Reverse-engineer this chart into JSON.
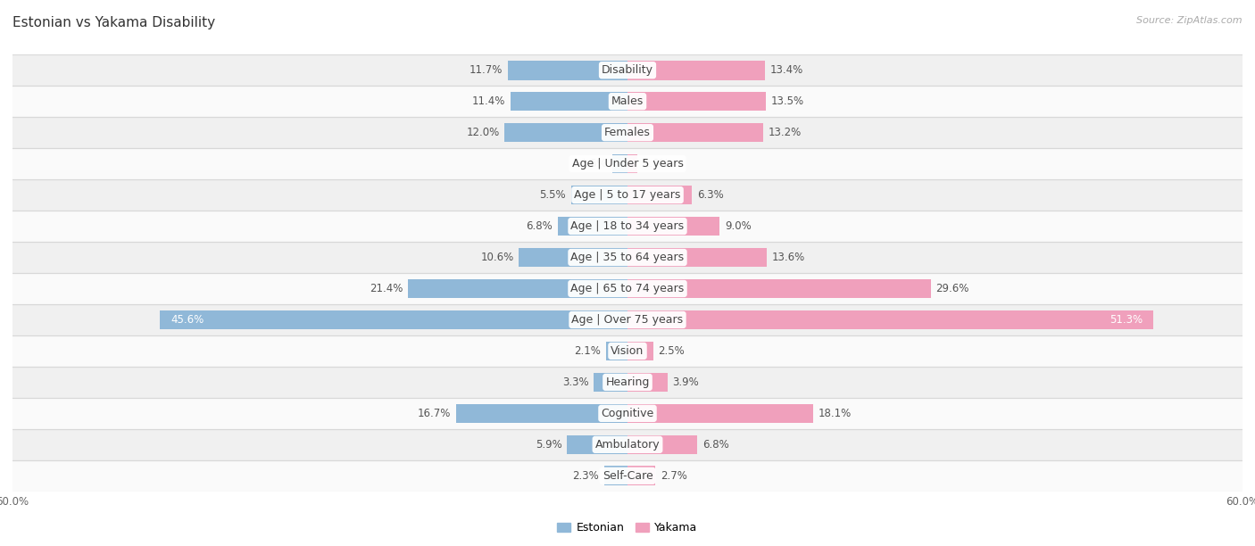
{
  "title": "Estonian vs Yakama Disability",
  "source": "Source: ZipAtlas.com",
  "categories": [
    "Disability",
    "Males",
    "Females",
    "Age | Under 5 years",
    "Age | 5 to 17 years",
    "Age | 18 to 34 years",
    "Age | 35 to 64 years",
    "Age | 65 to 74 years",
    "Age | Over 75 years",
    "Vision",
    "Hearing",
    "Cognitive",
    "Ambulatory",
    "Self-Care"
  ],
  "estonian": [
    11.7,
    11.4,
    12.0,
    1.5,
    5.5,
    6.8,
    10.6,
    21.4,
    45.6,
    2.1,
    3.3,
    16.7,
    5.9,
    2.3
  ],
  "yakama": [
    13.4,
    13.5,
    13.2,
    1.0,
    6.3,
    9.0,
    13.6,
    29.6,
    51.3,
    2.5,
    3.9,
    18.1,
    6.8,
    2.7
  ],
  "estonian_color": "#90b8d8",
  "yakama_color": "#f0a0bc",
  "estonian_label": "Estonian",
  "yakama_label": "Yakama",
  "xlim": 60.0,
  "bg_color": "#ffffff",
  "row_bg_even": "#f0f0f0",
  "row_bg_odd": "#fafafa",
  "bar_height": 0.62,
  "font_size_label": 9.0,
  "font_size_value": 8.5,
  "font_size_title": 11,
  "font_size_axis": 8.5,
  "font_size_legend": 9,
  "font_size_source": 8
}
